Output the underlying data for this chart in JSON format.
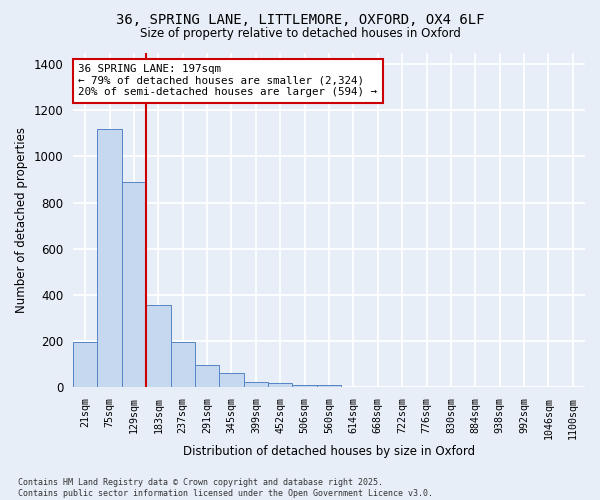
{
  "title_line1": "36, SPRING LANE, LITTLEMORE, OXFORD, OX4 6LF",
  "title_line2": "Size of property relative to detached houses in Oxford",
  "xlabel": "Distribution of detached houses by size in Oxford",
  "ylabel": "Number of detached properties",
  "bar_color": "#c5d8f0",
  "bar_edge_color": "#5585c5",
  "background_color": "#e8eef8",
  "grid_color": "#ffffff",
  "categories": [
    "21sqm",
    "75sqm",
    "129sqm",
    "183sqm",
    "237sqm",
    "291sqm",
    "345sqm",
    "399sqm",
    "452sqm",
    "506sqm",
    "560sqm",
    "614sqm",
    "668sqm",
    "722sqm",
    "776sqm",
    "830sqm",
    "884sqm",
    "938sqm",
    "992sqm",
    "1046sqm",
    "1100sqm"
  ],
  "values": [
    195,
    1120,
    890,
    355,
    195,
    98,
    60,
    22,
    18,
    10,
    8,
    0,
    0,
    0,
    0,
    0,
    0,
    0,
    0,
    0,
    0
  ],
  "ylim": [
    0,
    1450
  ],
  "yticks": [
    0,
    200,
    400,
    600,
    800,
    1000,
    1200,
    1400
  ],
  "annotation_text": "36 SPRING LANE: 197sqm\n← 79% of detached houses are smaller (2,324)\n20% of semi-detached houses are larger (594) →",
  "vline_x": 2.5,
  "vline_color": "#cc0000",
  "annotation_box_color": "#ffffff",
  "annotation_box_edge_color": "#cc0000",
  "footer_text": "Contains HM Land Registry data © Crown copyright and database right 2025.\nContains public sector information licensed under the Open Government Licence v3.0."
}
